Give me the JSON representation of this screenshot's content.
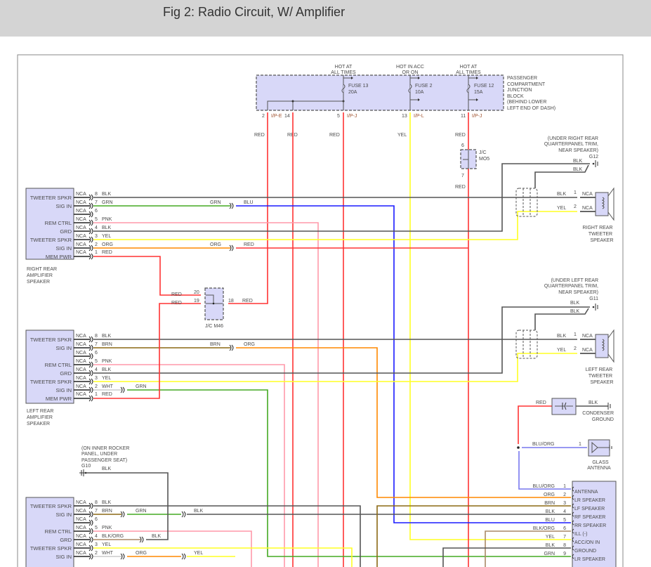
{
  "header": {
    "title": "Fig 2: Radio Circuit, W/ Amplifier"
  },
  "colors": {
    "red": "#ff3333",
    "yellow": "#ffff22",
    "green": "#44aa22",
    "blue": "#1a1aff",
    "orange": "#ff8800",
    "pink": "#ff99aa",
    "black": "#555555",
    "brown": "#8b6914",
    "blu_org": "#7777ee",
    "blk_org": "#aa8866",
    "component_fill": "#d8d8f8"
  },
  "fuse_block": {
    "label": [
      "PASSENGER",
      "COMPARTMENT",
      "JUNCTION",
      "BLOCK",
      "(BEHIND LOWER",
      "LEFT END OF DASH)"
    ],
    "fuses": [
      {
        "hot": [
          "HOT AT",
          "ALL TIMES"
        ],
        "name": "FUSE 13",
        "rating": "20A"
      },
      {
        "hot": [
          "HOT IN ACC",
          "OR ON"
        ],
        "name": "FUSE 2",
        "rating": "10A"
      },
      {
        "hot": [
          "HOT AT",
          "ALL TIMES"
        ],
        "name": "FUSE 12",
        "rating": "15A"
      }
    ],
    "pins": [
      {
        "num": "2",
        "conn": "I/P-E",
        "color": "RED"
      },
      {
        "num": "14",
        "color": "RED"
      },
      {
        "num": "5",
        "conn": "I/P-J",
        "color": "RED"
      },
      {
        "num": "13",
        "conn": "I/P-L",
        "color": "YEL"
      },
      {
        "num": "11",
        "conn": "I/P-J",
        "color": "RED"
      }
    ]
  },
  "jc_m05": {
    "label": [
      "J/C",
      "MO5"
    ],
    "pin_in": "6",
    "pin_out": "7",
    "wire_out": "RED"
  },
  "jc_m46": {
    "label": "J/C M46",
    "pins": [
      {
        "num": "20",
        "color": "RED"
      },
      {
        "num": "19",
        "color": "RED"
      },
      {
        "num": "18",
        "color": "RED"
      }
    ]
  },
  "right_amp": {
    "name": [
      "RIGHT REAR",
      "AMPLIFIER",
      "SPEAKER"
    ],
    "pins": [
      {
        "num": "8",
        "conn": "NCA",
        "color": "BLK",
        "func": "TWEETER SPKR"
      },
      {
        "num": "7",
        "conn": "NCA",
        "color": "GRN",
        "func": "SIG IN",
        "splice": [
          "GRN",
          "BLU"
        ]
      },
      {
        "num": "6",
        "conn": "NCA"
      },
      {
        "num": "5",
        "conn": "NCA",
        "color": "PNK",
        "func": "REM CTRL"
      },
      {
        "num": "4",
        "conn": "NCA",
        "color": "BLK",
        "func": "GRD"
      },
      {
        "num": "3",
        "conn": "NCA",
        "color": "YEL",
        "func": "TWEETER SPKR"
      },
      {
        "num": "2",
        "conn": "NCA",
        "color": "ORG",
        "func": "SIG IN",
        "splice": [
          "ORG",
          "RED"
        ]
      },
      {
        "num": "1",
        "conn": "NCA",
        "color": "RED",
        "func": "MEM PWR"
      }
    ]
  },
  "left_amp": {
    "name": [
      "LEFT REAR",
      "AMPLIFIER",
      "SPEAKER"
    ],
    "pins": [
      {
        "num": "8",
        "conn": "NCA",
        "color": "BLK",
        "func": "TWEETER SPKR"
      },
      {
        "num": "7",
        "conn": "NCA",
        "color": "BRN",
        "func": "SIG IN",
        "splice": [
          "BRN",
          "ORG"
        ]
      },
      {
        "num": "6",
        "conn": "NCA"
      },
      {
        "num": "5",
        "conn": "NCA",
        "color": "PNK",
        "func": "REM CTRL"
      },
      {
        "num": "4",
        "conn": "NCA",
        "color": "BLK",
        "func": "GRD"
      },
      {
        "num": "3",
        "conn": "NCA",
        "color": "YEL",
        "func": "TWEETER SPKR"
      },
      {
        "num": "2",
        "conn": "NCA",
        "color": "WHT",
        "func": "SIG IN",
        "splice": [
          "GRN"
        ]
      },
      {
        "num": "1",
        "conn": "NCA",
        "color": "RED",
        "func": "MEM PWR"
      }
    ]
  },
  "bottom_amp": {
    "pins": [
      {
        "num": "8",
        "conn": "NCA",
        "color": "BLK",
        "func": "TWEETER SPKR"
      },
      {
        "num": "7",
        "conn": "NCA",
        "color": "BRN",
        "func": "SIG IN",
        "splice": [
          "GRN",
          "BLK"
        ]
      },
      {
        "num": "6",
        "conn": "NCA"
      },
      {
        "num": "5",
        "conn": "NCA",
        "color": "PNK",
        "func": "REM CTRL"
      },
      {
        "num": "4",
        "conn": "NCA",
        "color": "BLK/ORG",
        "func": "GRD",
        "splice": [
          "BLK"
        ]
      },
      {
        "num": "3",
        "conn": "NCA",
        "color": "YEL",
        "func": "TWEETER SPKR"
      },
      {
        "num": "2",
        "conn": "NCA",
        "color": "WHT",
        "func": "SIG IN",
        "splice": [
          "ORG",
          "YEL"
        ]
      }
    ]
  },
  "g10": {
    "note": [
      "(ON INNER ROCKER",
      "PANEL, UNDER",
      "PASSENGER SEAT)"
    ],
    "id": "G10",
    "wire": "BLK"
  },
  "right_tweeter": {
    "note": [
      "(UNDER RIGHT REAR",
      "QUARTERPANEL TRIM,",
      "NEAR SPEAKER)"
    ],
    "ground": "G12",
    "ground_wires": [
      "BLK",
      "BLK"
    ],
    "pins": [
      {
        "num": "1",
        "conn": "NCA",
        "color": "BLK"
      },
      {
        "num": "2",
        "conn": "NCA",
        "color": "YEL"
      }
    ],
    "name": [
      "RIGHT REAR",
      "TWEETER",
      "SPEAKER"
    ]
  },
  "left_tweeter": {
    "note": [
      "(UNDER LEFT REAR",
      "QUARTERPANEL TRIM,",
      "NEAR SPEAKER)"
    ],
    "ground": "G11",
    "ground_wires": [
      "BLK",
      "BLK"
    ],
    "pins": [
      {
        "num": "1",
        "conn": "NCA",
        "color": "BLK"
      },
      {
        "num": "2",
        "conn": "NCA",
        "color": "YEL"
      }
    ],
    "name": [
      "LEFT REAR",
      "TWEETER",
      "SPEAKER"
    ]
  },
  "condenser": {
    "wire_in": "RED",
    "wire_out": "BLK",
    "name": [
      "CONDENSER",
      "GROUND"
    ]
  },
  "antenna": {
    "wire": "BLU/ORG",
    "pin": "1",
    "name": [
      "GLASS",
      "ANTENNA"
    ]
  },
  "radio": {
    "pins": [
      {
        "num": "1",
        "color": "BLU/ORG",
        "func": "ANTENNA"
      },
      {
        "num": "2",
        "color": "ORG",
        "func": "LR SPEAKER"
      },
      {
        "num": "3",
        "color": "BRN",
        "func": "LF SPEAKER"
      },
      {
        "num": "4",
        "color": "BLK",
        "func": "RF SPEAKER"
      },
      {
        "num": "5",
        "color": "BLU",
        "func": "RR SPEAKER"
      },
      {
        "num": "6",
        "color": "BLK/ORG",
        "func": "ILL (-)"
      },
      {
        "num": "7",
        "color": "YEL",
        "func": "ACC/ON IN"
      },
      {
        "num": "8",
        "color": "BLK",
        "func": "GROUND"
      },
      {
        "num": "9",
        "color": "GRN",
        "func": "LR SPEAKER"
      }
    ]
  }
}
